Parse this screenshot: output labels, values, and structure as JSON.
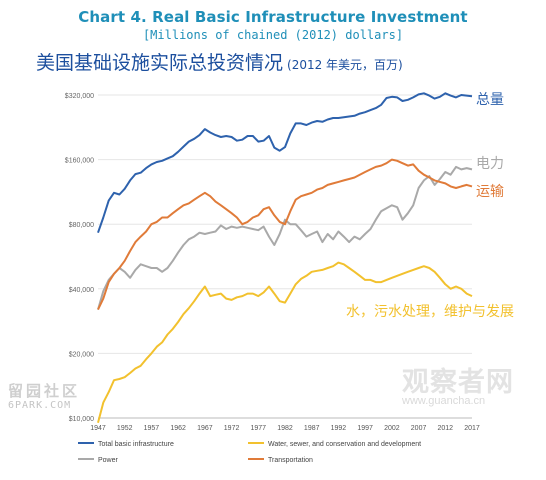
{
  "chart_data": {
    "type": "line",
    "title": "Chart 4. Real Basic Infrastructure Investment",
    "subtitle": "[Millions of chained (2012) dollars]",
    "title_cn": "美国基础设施实际总投资情况",
    "title_cn_unit": "(2012 年美元，百万)",
    "y_scale": "log",
    "ylim": [
      10000,
      320000
    ],
    "xlim": [
      1947,
      2017
    ],
    "y_ticks": [
      10000,
      20000,
      40000,
      80000,
      160000,
      320000
    ],
    "y_tick_labels": [
      "$10,000",
      "$20,000",
      "$40,000",
      "$80,000",
      "$160,000",
      "$320,000"
    ],
    "x_ticks": [
      1947,
      1952,
      1957,
      1962,
      1967,
      1972,
      1977,
      1982,
      1987,
      1992,
      1997,
      2002,
      2007,
      2012,
      2017
    ],
    "grid": true,
    "legend_position": "bottom",
    "series": [
      {
        "name": "Total basic infrastructure",
        "label_cn": "总量",
        "color": "#2e62ad",
        "x": [
          1947,
          1948,
          1949,
          1950,
          1951,
          1952,
          1953,
          1954,
          1955,
          1956,
          1957,
          1958,
          1959,
          1960,
          1961,
          1962,
          1963,
          1964,
          1965,
          1966,
          1967,
          1968,
          1969,
          1970,
          1971,
          1972,
          1973,
          1974,
          1975,
          1976,
          1977,
          1978,
          1979,
          1980,
          1981,
          1982,
          1983,
          1984,
          1985,
          1986,
          1987,
          1988,
          1989,
          1990,
          1991,
          1992,
          1993,
          1994,
          1995,
          1996,
          1997,
          1998,
          1999,
          2000,
          2001,
          2002,
          2003,
          2004,
          2005,
          2006,
          2007,
          2008,
          2009,
          2010,
          2011,
          2012,
          2013,
          2014,
          2015,
          2016,
          2017
        ],
        "values": [
          73000,
          86000,
          103000,
          112000,
          110000,
          117000,
          128000,
          137000,
          139000,
          146000,
          152000,
          156000,
          158000,
          162000,
          166000,
          174000,
          184000,
          194000,
          200000,
          208000,
          222000,
          214000,
          208000,
          204000,
          206000,
          204000,
          196000,
          198000,
          206000,
          206000,
          194000,
          196000,
          206000,
          182000,
          176000,
          183000,
          212000,
          236000,
          236000,
          232000,
          238000,
          242000,
          240000,
          246000,
          250000,
          250000,
          252000,
          254000,
          256000,
          262000,
          266000,
          272000,
          278000,
          288000,
          310000,
          314000,
          312000,
          300000,
          304000,
          312000,
          322000,
          326000,
          318000,
          308000,
          314000,
          326000,
          318000,
          312000,
          320000,
          318000,
          316000
        ]
      },
      {
        "name": "Power",
        "label_cn": "电力",
        "color": "#a9a9a9",
        "x": [
          1947,
          1948,
          1949,
          1950,
          1951,
          1952,
          1953,
          1954,
          1955,
          1956,
          1957,
          1958,
          1959,
          1960,
          1961,
          1962,
          1963,
          1964,
          1965,
          1966,
          1967,
          1968,
          1969,
          1970,
          1971,
          1972,
          1973,
          1974,
          1975,
          1976,
          1977,
          1978,
          1979,
          1980,
          1981,
          1982,
          1983,
          1984,
          1985,
          1986,
          1987,
          1988,
          1989,
          1990,
          1991,
          1992,
          1993,
          1994,
          1995,
          1996,
          1997,
          1998,
          1999,
          2000,
          2001,
          2002,
          2003,
          2004,
          2005,
          2006,
          2007,
          2008,
          2009,
          2010,
          2011,
          2012,
          2013,
          2014,
          2015,
          2016,
          2017
        ],
        "values": [
          32000,
          39000,
          44000,
          47000,
          50000,
          48000,
          45000,
          49000,
          52000,
          51000,
          50000,
          50000,
          48000,
          50000,
          54000,
          59000,
          64000,
          68000,
          70000,
          73000,
          72000,
          73000,
          74000,
          79000,
          76000,
          78000,
          77000,
          78000,
          77000,
          76000,
          75000,
          78000,
          70000,
          64000,
          72000,
          84000,
          80000,
          80000,
          75000,
          70000,
          72000,
          74000,
          66000,
          72000,
          68000,
          74000,
          70000,
          66000,
          70000,
          68000,
          72000,
          76000,
          84000,
          92000,
          95000,
          98000,
          96000,
          84000,
          90000,
          98000,
          118000,
          128000,
          134000,
          122000,
          130000,
          140000,
          136000,
          148000,
          144000,
          146000,
          144000
        ]
      },
      {
        "name": "Transportation",
        "label_cn": "运输",
        "color": "#e07b39",
        "x": [
          1947,
          1948,
          1949,
          1950,
          1951,
          1952,
          1953,
          1954,
          1955,
          1956,
          1957,
          1958,
          1959,
          1960,
          1961,
          1962,
          1963,
          1964,
          1965,
          1966,
          1967,
          1968,
          1969,
          1970,
          1971,
          1972,
          1973,
          1974,
          1975,
          1976,
          1977,
          1978,
          1979,
          1980,
          1981,
          1982,
          1983,
          1984,
          1985,
          1986,
          1987,
          1988,
          1989,
          1990,
          1991,
          1992,
          1993,
          1994,
          1995,
          1996,
          1997,
          1998,
          1999,
          2000,
          2001,
          2002,
          2003,
          2004,
          2005,
          2006,
          2007,
          2008,
          2009,
          2010,
          2011,
          2012,
          2013,
          2014,
          2015,
          2016,
          2017
        ],
        "values": [
          32000,
          36000,
          43000,
          47000,
          50000,
          54000,
          60000,
          66000,
          70000,
          74000,
          80000,
          82000,
          86000,
          86000,
          90000,
          94000,
          98000,
          100000,
          104000,
          108000,
          112000,
          108000,
          102000,
          98000,
          94000,
          90000,
          86000,
          80000,
          82000,
          86000,
          88000,
          94000,
          96000,
          88000,
          82000,
          80000,
          92000,
          104000,
          108000,
          110000,
          112000,
          116000,
          118000,
          122000,
          124000,
          126000,
          128000,
          130000,
          132000,
          136000,
          140000,
          144000,
          148000,
          150000,
          154000,
          160000,
          158000,
          154000,
          150000,
          152000,
          142000,
          136000,
          132000,
          128000,
          126000,
          124000,
          120000,
          118000,
          120000,
          122000,
          120000
        ]
      },
      {
        "name": "Water, sewer, and conservation and development",
        "label_cn": "水，污水处理，维护与发展",
        "color": "#f2c12e",
        "x": [
          1947,
          1948,
          1949,
          1950,
          1951,
          1952,
          1953,
          1954,
          1955,
          1956,
          1957,
          1958,
          1959,
          1960,
          1961,
          1962,
          1963,
          1964,
          1965,
          1966,
          1967,
          1968,
          1969,
          1970,
          1971,
          1972,
          1973,
          1974,
          1975,
          1976,
          1977,
          1978,
          1979,
          1980,
          1981,
          1982,
          1983,
          1984,
          1985,
          1986,
          1987,
          1988,
          1989,
          1990,
          1991,
          1992,
          1993,
          1994,
          1995,
          1996,
          1997,
          1998,
          1999,
          2000,
          2001,
          2002,
          2003,
          2004,
          2005,
          2006,
          2007,
          2008,
          2009,
          2010,
          2011,
          2012,
          2013,
          2014,
          2015,
          2016,
          2017
        ],
        "values": [
          9500,
          11800,
          13200,
          15000,
          15200,
          15500,
          16200,
          17000,
          17500,
          18800,
          20000,
          21500,
          22500,
          24500,
          26000,
          28000,
          30500,
          32500,
          35000,
          38000,
          41000,
          37000,
          37500,
          38000,
          36000,
          35500,
          36500,
          37000,
          38000,
          38000,
          37000,
          38500,
          41000,
          38000,
          35000,
          34500,
          38000,
          42000,
          44500,
          46000,
          48000,
          48500,
          49000,
          50000,
          51000,
          53000,
          52000,
          50000,
          48000,
          46000,
          44000,
          44000,
          43000,
          43000,
          44000,
          45000,
          46000,
          47000,
          48000,
          49000,
          50000,
          51000,
          50000,
          48000,
          45000,
          42000,
          40000,
          41000,
          40000,
          38000,
          37000
        ]
      }
    ]
  },
  "watermarks": {
    "left_cn": "留园社区",
    "left_url": "6PARK.COM",
    "right_cn": "观察者网",
    "right_url": "www.guancha.cn"
  }
}
